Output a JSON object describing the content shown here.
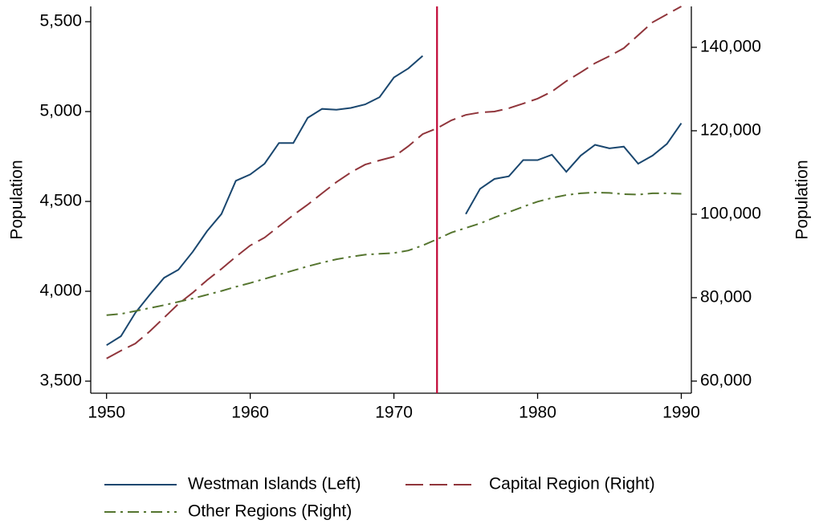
{
  "chart_data": {
    "type": "line",
    "x": [
      1950,
      1951,
      1952,
      1953,
      1954,
      1955,
      1956,
      1957,
      1958,
      1959,
      1960,
      1961,
      1962,
      1963,
      1964,
      1965,
      1966,
      1967,
      1968,
      1969,
      1970,
      1971,
      1972,
      1973,
      1974,
      1975,
      1976,
      1977,
      1978,
      1979,
      1980,
      1981,
      1982,
      1983,
      1984,
      1985,
      1986,
      1987,
      1988,
      1989,
      1990
    ],
    "series": [
      {
        "name": "Westman Islands (Left)",
        "color": "#1a476f",
        "linestyle": "solid",
        "axis": "y",
        "values": [
          3700,
          3750,
          3880,
          3980,
          4075,
          4120,
          4220,
          4335,
          4430,
          4615,
          4650,
          4710,
          4825,
          4825,
          4965,
          5015,
          5010,
          5020,
          5040,
          5080,
          5190,
          5240,
          5310,
          null,
          null,
          4430,
          4570,
          4625,
          4640,
          4730,
          4730,
          4760,
          4665,
          4755,
          4815,
          4795,
          4805,
          4710,
          4755,
          4820,
          4935
        ]
      },
      {
        "name": "Capital Region (Right)",
        "color": "#90353b",
        "linestyle": "dash",
        "axis": "y2",
        "values": [
          65400,
          67300,
          69000,
          71900,
          75200,
          78500,
          81200,
          84200,
          86900,
          89800,
          92500,
          94400,
          97100,
          99800,
          102300,
          105000,
          107700,
          110000,
          111900,
          112900,
          113800,
          116300,
          119200,
          120600,
          122500,
          123800,
          124400,
          124600,
          125400,
          126500,
          127700,
          129400,
          131900,
          134000,
          136200,
          137900,
          139800,
          142900,
          146000,
          147900,
          149800
        ]
      },
      {
        "name": "Other Regions (Right)",
        "color": "#55752f",
        "linestyle": "dashdot",
        "axis": "y2",
        "values": [
          75800,
          76100,
          76800,
          77500,
          78200,
          79000,
          79800,
          80700,
          81600,
          82600,
          83500,
          84500,
          85500,
          86500,
          87500,
          88400,
          89200,
          89800,
          90300,
          90500,
          90700,
          91300,
          92500,
          94000,
          95600,
          96700,
          97800,
          99200,
          100500,
          101800,
          103000,
          103900,
          104600,
          105000,
          105200,
          105100,
          104800,
          104700,
          105000,
          105000,
          104900
        ]
      }
    ],
    "y_label": "Population",
    "y2_label": "Population",
    "xlim": [
      1948.9,
      1990.7
    ],
    "xticks": [
      1950,
      1960,
      1970,
      1980,
      1990
    ],
    "ylim": [
      3433,
      5585
    ],
    "yticks": [
      {
        "value": 3500,
        "label": "3,500"
      },
      {
        "value": 4000,
        "label": "4,000"
      },
      {
        "value": 4500,
        "label": "4,500"
      },
      {
        "value": 5000,
        "label": "5,000"
      },
      {
        "value": 5500,
        "label": "5,500"
      }
    ],
    "y2lim": [
      57100,
      149800
    ],
    "y2ticks": [
      {
        "value": 60000,
        "label": "60,000"
      },
      {
        "value": 80000,
        "label": "80,000"
      },
      {
        "value": 100000,
        "label": "100,000"
      },
      {
        "value": 120000,
        "label": "120,000"
      },
      {
        "value": 140000,
        "label": "140,000"
      }
    ],
    "vline": {
      "x": 1973,
      "color": "#c10534"
    },
    "legend": "bottom",
    "grid": false
  }
}
